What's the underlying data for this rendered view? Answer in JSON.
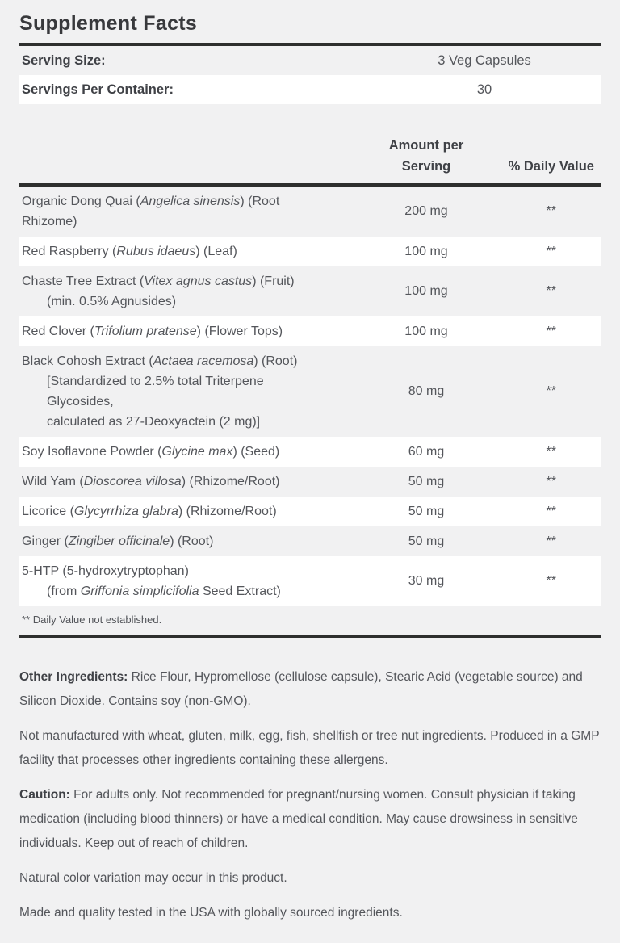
{
  "colors": {
    "page_bg": "#f1f1f2",
    "row_white": "#ffffff",
    "body_text": "#54565b",
    "heading_text": "#38393c",
    "bold_text": "#3f4146",
    "rule": "#2e2f2e"
  },
  "header": {
    "title": "Supplement Facts"
  },
  "serving": {
    "size_label": "Serving Size:",
    "size_value": "3 Veg Capsules",
    "per_container_label": "Servings Per Container:",
    "per_container_value": "30"
  },
  "table": {
    "amount_header_line1": "Amount per",
    "amount_header_line2": "Serving",
    "dv_header": "% Daily Value",
    "footnote": "** Daily Value not established.",
    "rows": [
      {
        "lines": [
          {
            "indent": 0,
            "segments": [
              {
                "t": "Organic Dong Quai ("
              },
              {
                "t": "Angelica sinensis",
                "i": 1
              },
              {
                "t": ") (Root"
              }
            ]
          },
          {
            "indent": 0,
            "segments": [
              {
                "t": "Rhizome)"
              }
            ]
          }
        ],
        "amount": "200 mg",
        "dv": "**"
      },
      {
        "lines": [
          {
            "indent": 0,
            "segments": [
              {
                "t": "Red Raspberry ("
              },
              {
                "t": "Rubus idaeus",
                "i": 1
              },
              {
                "t": ") (Leaf)"
              }
            ]
          }
        ],
        "amount": "100 mg",
        "dv": "**"
      },
      {
        "lines": [
          {
            "indent": 0,
            "segments": [
              {
                "t": "Chaste Tree Extract ("
              },
              {
                "t": "Vitex agnus castus",
                "i": 1
              },
              {
                "t": ") (Fruit)"
              }
            ]
          },
          {
            "indent": 1,
            "segments": [
              {
                "t": "(min. 0.5% Agnusides)"
              }
            ]
          }
        ],
        "amount": "100 mg",
        "dv": "**"
      },
      {
        "lines": [
          {
            "indent": 0,
            "segments": [
              {
                "t": "Red Clover ("
              },
              {
                "t": "Trifolium pratense",
                "i": 1
              },
              {
                "t": ") (Flower Tops)"
              }
            ]
          }
        ],
        "amount": "100 mg",
        "dv": "**"
      },
      {
        "lines": [
          {
            "indent": 0,
            "segments": [
              {
                "t": "Black Cohosh Extract ("
              },
              {
                "t": "Actaea racemosa",
                "i": 1
              },
              {
                "t": ") (Root)"
              }
            ]
          },
          {
            "indent": 1,
            "segments": [
              {
                "t": "[Standardized to 2.5% total Triterpene"
              }
            ]
          },
          {
            "indent": 1,
            "segments": [
              {
                "t": "Glycosides,"
              }
            ]
          },
          {
            "indent": 1,
            "segments": [
              {
                "t": "calculated as 27-Deoxyactein (2 mg)]"
              }
            ]
          }
        ],
        "amount": "80 mg",
        "dv": "**"
      },
      {
        "lines": [
          {
            "indent": 0,
            "segments": [
              {
                "t": "Soy Isoflavone Powder ("
              },
              {
                "t": "Glycine max",
                "i": 1
              },
              {
                "t": ") (Seed)"
              }
            ]
          }
        ],
        "amount": "60 mg",
        "dv": "**"
      },
      {
        "lines": [
          {
            "indent": 0,
            "segments": [
              {
                "t": "Wild Yam ("
              },
              {
                "t": "Dioscorea villosa",
                "i": 1
              },
              {
                "t": ") (Rhizome/Root)"
              }
            ]
          }
        ],
        "amount": "50 mg",
        "dv": "**"
      },
      {
        "lines": [
          {
            "indent": 0,
            "segments": [
              {
                "t": "Licorice ("
              },
              {
                "t": "Glycyrrhiza glabra",
                "i": 1
              },
              {
                "t": ") (Rhizome/Root)"
              }
            ]
          }
        ],
        "amount": "50 mg",
        "dv": "**"
      },
      {
        "lines": [
          {
            "indent": 0,
            "segments": [
              {
                "t": "Ginger ("
              },
              {
                "t": "Zingiber officinale",
                "i": 1
              },
              {
                "t": ") (Root)"
              }
            ]
          }
        ],
        "amount": "50 mg",
        "dv": "**"
      },
      {
        "lines": [
          {
            "indent": 0,
            "segments": [
              {
                "t": "5-HTP (5-hydroxytryptophan)"
              }
            ]
          },
          {
            "indent": 1,
            "segments": [
              {
                "t": "(from "
              },
              {
                "t": "Griffonia simplicifolia",
                "i": 1
              },
              {
                "t": " Seed Extract)"
              }
            ]
          }
        ],
        "amount": "30 mg",
        "dv": "**"
      }
    ]
  },
  "paragraphs": [
    {
      "bold": "Other Ingredients:",
      "text": "Rice Flour, Hypromellose (cellulose capsule), Stearic Acid (vegetable source) and Silicon Dioxide. Contains soy (non-GMO)."
    },
    {
      "bold": "",
      "text": "Not manufactured with wheat, gluten, milk, egg, fish, shellfish or tree nut ingredients. Produced in a GMP facility that processes other ingredients containing these allergens."
    },
    {
      "bold": "Caution:",
      "text": "For adults only. Not recommended for pregnant/nursing women. Consult physician if taking medication (including blood thinners) or have a medical condition. May cause drowsiness in sensitive individuals. Keep out of reach of children."
    },
    {
      "bold": "",
      "text": "Natural color variation may occur in this product."
    },
    {
      "bold": "",
      "text": "Made and quality tested in the USA with globally sourced ingredients."
    }
  ]
}
